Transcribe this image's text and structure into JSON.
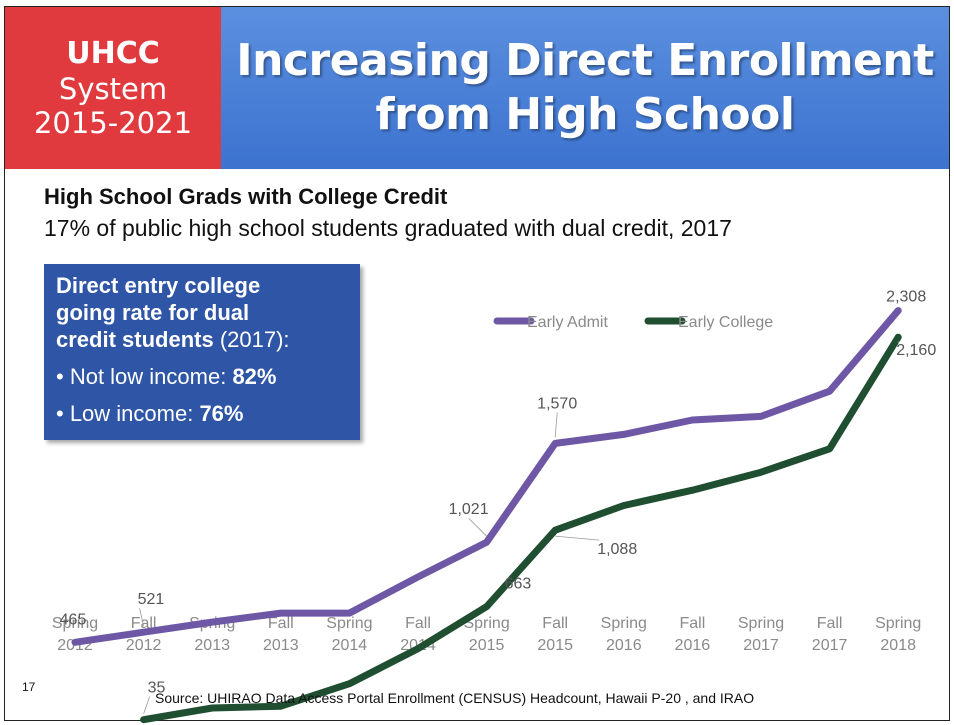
{
  "badge": {
    "line1": "UHCC",
    "line2": "System",
    "line3": "2015-2021"
  },
  "banner": {
    "title_line1": "Increasing Direct Enrollment",
    "title_line2": "from High School"
  },
  "subhead": "High School Grads with College Credit",
  "subline": "17% of public high school students graduated with dual credit, 2017",
  "callout": {
    "heading_line1": "Direct entry college",
    "heading_line2": "going rate for dual",
    "heading_line3_bold": "credit students",
    "heading_line3_year": " (2017):",
    "items": [
      {
        "label": "• Not low income: ",
        "value": "82%"
      },
      {
        "label": "• Low income:  ",
        "value": "76%"
      }
    ]
  },
  "page_number": "17",
  "source": "Source:  UHIRAO Data Access Portal  Enrollment (CENSUS) Headcount, Hawaii P-20 , and IRAO",
  "colors": {
    "early_admit": "#6e58a6",
    "early_college": "#1f4e31",
    "badge": "#e0393e",
    "banner": "#4a80d6",
    "callout": "#2f56a6"
  },
  "chart_data": {
    "type": "line",
    "categories": [
      [
        "Spring",
        "2012"
      ],
      [
        "Fall",
        "2012"
      ],
      [
        "Spring",
        "2013"
      ],
      [
        "Fall",
        "2013"
      ],
      [
        "Spring",
        "2014"
      ],
      [
        "Fall",
        "2014"
      ],
      [
        "Spring",
        "2015"
      ],
      [
        "Fall",
        "2015"
      ],
      [
        "Spring",
        "2016"
      ],
      [
        "Fall",
        "2016"
      ],
      [
        "Spring",
        "2017"
      ],
      [
        "Fall",
        "2017"
      ],
      [
        "Spring",
        "2018"
      ]
    ],
    "ylim": [
      0,
      2500
    ],
    "legend_position": "top-right",
    "series": [
      {
        "name": "Early Admit",
        "values": [
          465,
          521,
          577,
          627,
          627,
          828,
          1021,
          1570,
          1620,
          1700,
          1720,
          1860,
          2308
        ]
      },
      {
        "name": "Early College",
        "values": [
          null,
          35,
          100,
          110,
          235,
          430,
          663,
          1088,
          1225,
          1310,
          1410,
          1540,
          2160
        ]
      }
    ],
    "data_labels": [
      {
        "series": 0,
        "index": 0,
        "text": "465"
      },
      {
        "series": 0,
        "index": 1,
        "text": "521"
      },
      {
        "series": 0,
        "index": 6,
        "text": "1,021"
      },
      {
        "series": 0,
        "index": 7,
        "text": "1,570"
      },
      {
        "series": 0,
        "index": 12,
        "text": "2,308"
      },
      {
        "series": 1,
        "index": 1,
        "text": "35"
      },
      {
        "series": 1,
        "index": 6,
        "text": "663"
      },
      {
        "series": 1,
        "index": 7,
        "text": "1,088"
      },
      {
        "series": 1,
        "index": 12,
        "text": "2,160"
      }
    ]
  }
}
